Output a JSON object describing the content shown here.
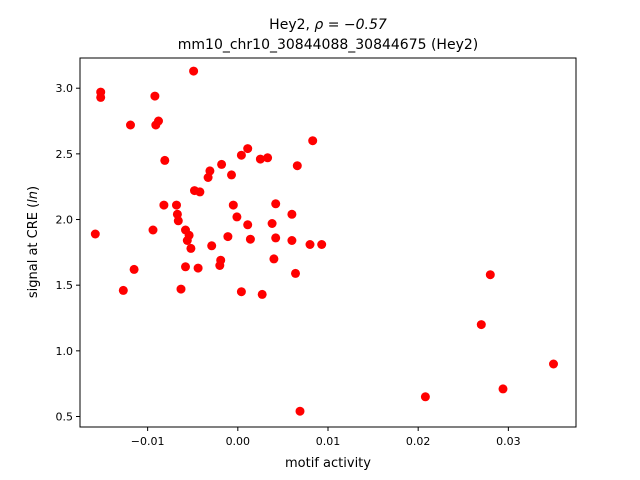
{
  "chart_data": {
    "type": "scatter",
    "title_line1": "Hey2, ",
    "title_rho": "ρ = −0.57",
    "title_line2": "mm10_chr10_30844088_30844675 (Hey2)",
    "xlabel": "motif activity",
    "ylabel": "signal at CRE (",
    "ylabel_ln": "ln",
    "ylabel_end": ")",
    "xlim": [
      -0.0175,
      0.0375
    ],
    "ylim": [
      0.42,
      3.23
    ],
    "xticks": [
      -0.01,
      0.0,
      0.01,
      0.02,
      0.03
    ],
    "xtick_labels": [
      "−0.01",
      "0.00",
      "0.01",
      "0.02",
      "0.03"
    ],
    "yticks": [
      0.5,
      1.0,
      1.5,
      2.0,
      2.5,
      3.0
    ],
    "ytick_labels": [
      "0.5",
      "1.0",
      "1.5",
      "2.0",
      "2.5",
      "3.0"
    ],
    "grid": false,
    "marker_color": "#ff0000",
    "points": [
      [
        -0.0158,
        1.89
      ],
      [
        -0.0152,
        2.97
      ],
      [
        -0.0152,
        2.93
      ],
      [
        -0.0127,
        1.46
      ],
      [
        -0.0119,
        2.72
      ],
      [
        -0.0115,
        1.62
      ],
      [
        -0.0094,
        1.92
      ],
      [
        -0.0092,
        2.94
      ],
      [
        -0.0091,
        2.72
      ],
      [
        -0.0088,
        2.75
      ],
      [
        -0.0082,
        2.11
      ],
      [
        -0.0081,
        2.45
      ],
      [
        -0.0068,
        2.11
      ],
      [
        -0.0067,
        2.04
      ],
      [
        -0.0066,
        1.99
      ],
      [
        -0.0063,
        1.47
      ],
      [
        -0.0058,
        1.92
      ],
      [
        -0.0058,
        1.64
      ],
      [
        -0.0056,
        1.84
      ],
      [
        -0.0054,
        1.88
      ],
      [
        -0.0052,
        1.78
      ],
      [
        -0.0049,
        3.13
      ],
      [
        -0.0048,
        2.22
      ],
      [
        -0.0044,
        1.63
      ],
      [
        -0.0042,
        2.21
      ],
      [
        -0.0033,
        2.32
      ],
      [
        -0.0031,
        2.37
      ],
      [
        -0.0029,
        1.8
      ],
      [
        -0.002,
        1.65
      ],
      [
        -0.0019,
        1.69
      ],
      [
        -0.0018,
        2.42
      ],
      [
        -0.0011,
        1.87
      ],
      [
        -0.0007,
        2.34
      ],
      [
        -0.0005,
        2.11
      ],
      [
        -0.0001,
        2.02
      ],
      [
        0.0004,
        2.49
      ],
      [
        0.0004,
        1.45
      ],
      [
        0.0011,
        2.54
      ],
      [
        0.0011,
        1.96
      ],
      [
        0.0014,
        1.85
      ],
      [
        0.0025,
        2.46
      ],
      [
        0.0027,
        1.43
      ],
      [
        0.0033,
        2.47
      ],
      [
        0.0038,
        1.97
      ],
      [
        0.004,
        1.7
      ],
      [
        0.0042,
        2.12
      ],
      [
        0.0042,
        1.86
      ],
      [
        0.006,
        2.04
      ],
      [
        0.006,
        1.84
      ],
      [
        0.0064,
        1.59
      ],
      [
        0.0066,
        2.41
      ],
      [
        0.0069,
        0.54
      ],
      [
        0.008,
        1.81
      ],
      [
        0.0083,
        2.6
      ],
      [
        0.0093,
        1.81
      ],
      [
        0.0208,
        0.65
      ],
      [
        0.027,
        1.2
      ],
      [
        0.028,
        1.58
      ],
      [
        0.0294,
        0.71
      ],
      [
        0.035,
        0.9
      ]
    ]
  }
}
